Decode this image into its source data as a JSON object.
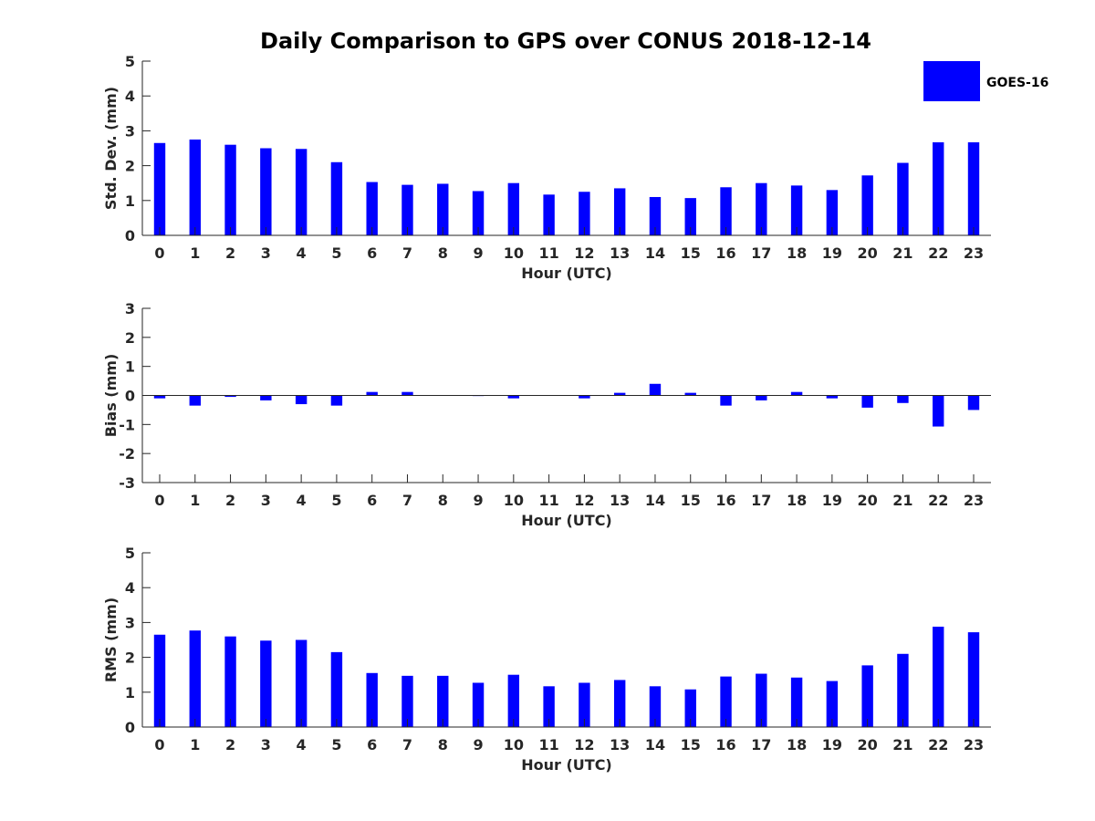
{
  "title": "Daily Comparison to GPS over CONUS 2018-12-14",
  "legend": {
    "label": "GOES-16",
    "color": "#0000ff",
    "position": "top-right"
  },
  "chart_data": [
    {
      "type": "bar",
      "name": "std-dev",
      "xlabel": "Hour (UTC)",
      "ylabel": "Std. Dev. (mm)",
      "ylim": [
        0,
        5
      ],
      "yticks": [
        0,
        1,
        2,
        3,
        4,
        5
      ],
      "categories": [
        "0",
        "1",
        "2",
        "3",
        "4",
        "5",
        "6",
        "7",
        "8",
        "9",
        "10",
        "11",
        "12",
        "13",
        "14",
        "15",
        "16",
        "17",
        "18",
        "19",
        "20",
        "21",
        "22",
        "23"
      ],
      "series": [
        {
          "name": "GOES-16",
          "values": [
            2.65,
            2.75,
            2.6,
            2.5,
            2.48,
            2.1,
            1.53,
            1.45,
            1.48,
            1.27,
            1.5,
            1.17,
            1.25,
            1.35,
            1.1,
            1.07,
            1.38,
            1.5,
            1.43,
            1.3,
            1.72,
            2.08,
            2.67,
            2.67
          ]
        }
      ]
    },
    {
      "type": "bar",
      "name": "bias",
      "xlabel": "Hour (UTC)",
      "ylabel": "Bias (mm)",
      "ylim": [
        -3,
        3
      ],
      "yticks": [
        -3,
        -2,
        -1,
        0,
        1,
        2,
        3
      ],
      "categories": [
        "0",
        "1",
        "2",
        "3",
        "4",
        "5",
        "6",
        "7",
        "8",
        "9",
        "10",
        "11",
        "12",
        "13",
        "14",
        "15",
        "16",
        "17",
        "18",
        "19",
        "20",
        "21",
        "22",
        "23"
      ],
      "series": [
        {
          "name": "GOES-16",
          "values": [
            -0.1,
            -0.35,
            -0.05,
            -0.17,
            -0.3,
            -0.35,
            0.12,
            0.12,
            0.0,
            -0.02,
            -0.1,
            0.0,
            -0.1,
            0.09,
            0.4,
            0.09,
            -0.35,
            -0.17,
            0.12,
            -0.1,
            -0.42,
            -0.26,
            -1.07,
            -0.5
          ]
        }
      ]
    },
    {
      "type": "bar",
      "name": "rms",
      "xlabel": "Hour (UTC)",
      "ylabel": "RMS (mm)",
      "ylim": [
        0,
        5
      ],
      "yticks": [
        0,
        1,
        2,
        3,
        4,
        5
      ],
      "categories": [
        "0",
        "1",
        "2",
        "3",
        "4",
        "5",
        "6",
        "7",
        "8",
        "9",
        "10",
        "11",
        "12",
        "13",
        "14",
        "15",
        "16",
        "17",
        "18",
        "19",
        "20",
        "21",
        "22",
        "23"
      ],
      "series": [
        {
          "name": "GOES-16",
          "values": [
            2.65,
            2.77,
            2.6,
            2.48,
            2.5,
            2.15,
            1.55,
            1.47,
            1.47,
            1.27,
            1.5,
            1.17,
            1.27,
            1.35,
            1.17,
            1.08,
            1.45,
            1.53,
            1.42,
            1.32,
            1.77,
            2.1,
            2.88,
            2.72
          ]
        }
      ]
    }
  ]
}
